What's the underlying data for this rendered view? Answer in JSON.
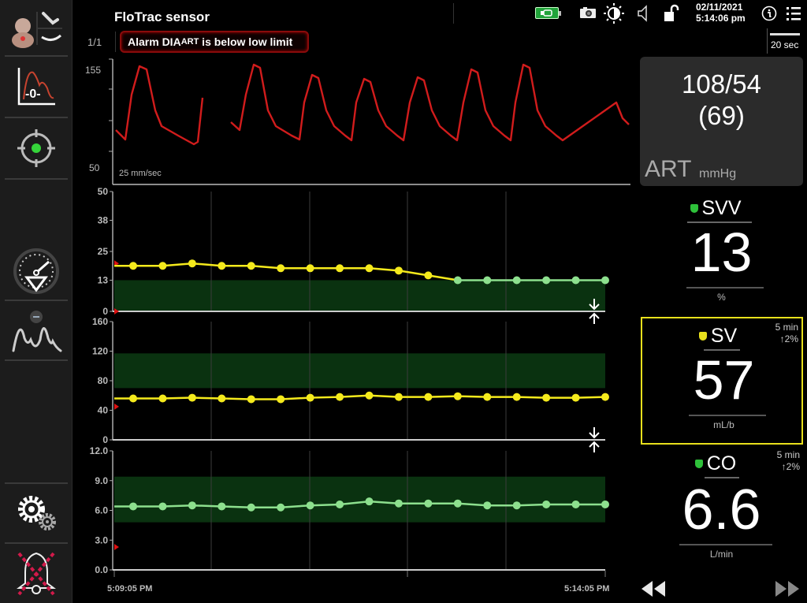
{
  "header": {
    "title": "FloTrac sensor",
    "page_indicator": "1/1",
    "alarm": {
      "prefix": "Alarm DIA",
      "sub": "ART",
      "suffix": " is below low limit"
    },
    "date": "02/11/2021",
    "time": "5:14:06 pm",
    "scale_label": "20 sec",
    "icons": [
      "battery-plugged-icon",
      "camera-icon",
      "brightness-icon",
      "volume-icon",
      "unlock-icon",
      "info-icon",
      "menu-list-icon"
    ]
  },
  "sidebar": {
    "items": [
      {
        "name": "patient-icon",
        "label": "Patient"
      },
      {
        "name": "zero-waveform-icon",
        "label": "-0-"
      },
      {
        "name": "target-icon",
        "label": "Target"
      },
      {
        "name": "gauge-icon",
        "label": "Cockpit"
      },
      {
        "name": "waveform-monitor-icon",
        "label": "Waveform"
      },
      {
        "name": "settings-gears-icon",
        "label": "Settings"
      },
      {
        "name": "alarm-silenced-bell-icon",
        "label": "Silence Alarms"
      }
    ]
  },
  "waveform": {
    "y_max": "155",
    "y_min": "50",
    "speed_label": "25 mm/sec",
    "color": "#d11c1c"
  },
  "chart_data": [
    {
      "type": "line",
      "title": "SVV trend",
      "ylim": [
        0,
        50
      ],
      "yticks": [
        "50",
        "38",
        "25",
        "13",
        "0"
      ],
      "target_range": [
        0,
        13
      ],
      "x": [
        1,
        2,
        3,
        4,
        5,
        6,
        7,
        8,
        9,
        10,
        11,
        12,
        13,
        14,
        15,
        16,
        17
      ],
      "values": [
        19,
        19,
        20,
        19,
        19,
        18,
        18,
        18,
        18,
        17,
        15,
        13,
        13,
        13,
        13,
        13,
        13
      ]
    },
    {
      "type": "line",
      "title": "SV trend",
      "ylim": [
        0,
        160
      ],
      "yticks": [
        "160",
        "120",
        "80",
        "40",
        "0"
      ],
      "target_range": [
        70,
        117
      ],
      "x": [
        1,
        2,
        3,
        4,
        5,
        6,
        7,
        8,
        9,
        10,
        11,
        12,
        13,
        14,
        15,
        16,
        17
      ],
      "values": [
        56,
        56,
        57,
        56,
        55,
        55,
        57,
        58,
        60,
        58,
        58,
        59,
        58,
        58,
        57,
        57,
        58
      ]
    },
    {
      "type": "line",
      "title": "CO trend",
      "ylim": [
        0,
        12
      ],
      "yticks": [
        "12.0",
        "9.0",
        "6.0",
        "3.0",
        "0.0"
      ],
      "target_range": [
        4.8,
        9.4
      ],
      "x": [
        1,
        2,
        3,
        4,
        5,
        6,
        7,
        8,
        9,
        10,
        11,
        12,
        13,
        14,
        15,
        16,
        17
      ],
      "values": [
        6.4,
        6.4,
        6.5,
        6.4,
        6.3,
        6.3,
        6.5,
        6.6,
        6.9,
        6.7,
        6.7,
        6.7,
        6.5,
        6.5,
        6.6,
        6.6,
        6.6
      ],
      "xlabel_start": "5:09:05 PM",
      "xlabel_end": "5:14:05 PM"
    }
  ],
  "time_axis": {
    "start": "5:09:05 PM",
    "end": "5:14:05 PM"
  },
  "art": {
    "sys_dia": "108/54",
    "map": "(69)",
    "label": "ART",
    "unit": "mmHg"
  },
  "params": [
    {
      "name": "SVV",
      "value": "13",
      "unit": "%",
      "flag_color": "#2ec13a",
      "trend_time": "",
      "trend_change": ""
    },
    {
      "name": "SV",
      "value": "57",
      "unit": "mL/b",
      "flag_color": "#e8e01c",
      "trend_time": "5 min",
      "trend_change": "↑2%"
    },
    {
      "name": "CO",
      "value": "6.6",
      "unit": "L/min",
      "flag_color": "#2ec13a",
      "trend_time": "5 min",
      "trend_change": "↑2%"
    }
  ],
  "colors": {
    "target_zone": "#0a3210",
    "svv_yellow": "#f5ea1c",
    "green_point": "#8de08e",
    "alarm_border": "#8a0b0b",
    "selected_border": "#e8e01c"
  }
}
